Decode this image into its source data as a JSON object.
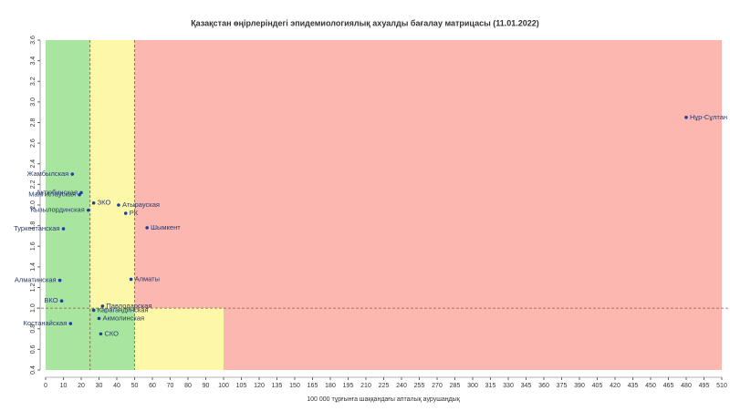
{
  "chart_data": {
    "type": "scatter",
    "title": "Қазақстан өңірлеріндегі эпидемиологиялық ахуалды бағалау матрицасы  (11.01.2022)",
    "x_label": "100 000 тұрғынға шаққандағы апталық аурушаңдық",
    "labels": [
      "Нұр-Сұлтан",
      "Жамбылская",
      "Актюбинская",
      "Мангистауская",
      "ЗКО",
      "Атырауская",
      "РК",
      "Шымкент",
      "Кызылординская",
      "Туркестанская",
      "Алматинская",
      "Алматы",
      "ВКО",
      "Павлодарская",
      "Карагандинская",
      "Акмолинская",
      "Костанайская",
      "СКО"
    ],
    "x": [
      480,
      15,
      20,
      19,
      27,
      41,
      45,
      57,
      24,
      10,
      8,
      48,
      9,
      32,
      27,
      30,
      14,
      31
    ],
    "values": [
      2.85,
      2.3,
      2.12,
      2.1,
      2.02,
      2.0,
      1.92,
      1.78,
      1.95,
      1.77,
      1.27,
      1.28,
      1.07,
      1.02,
      0.98,
      0.9,
      0.85,
      0.75
    ],
    "color": "#1f3fa0",
    "xlim": [
      0,
      510
    ],
    "ylim": [
      0.4,
      3.6
    ],
    "xticks": [
      0,
      10,
      20,
      30,
      40,
      50,
      60,
      70,
      80,
      90,
      100,
      105,
      120,
      135,
      150,
      165,
      180,
      195,
      210,
      225,
      240,
      255,
      270,
      285,
      300,
      315,
      330,
      345,
      360,
      375,
      390,
      405,
      420,
      435,
      450,
      465,
      480,
      495,
      510
    ],
    "yticks": [
      0.4,
      0.6,
      0.8,
      {
        "value": 1,
        "label": "1.0"
      },
      1.2,
      1.4,
      1.6,
      1.8,
      {
        "value": 2,
        "label": "2.0"
      },
      2.2,
      2.4,
      2.6,
      2.8,
      {
        "value": 3,
        "label": "3.0"
      },
      3.2,
      3.4,
      3.6
    ],
    "zones": [
      {
        "x": [
          0,
          25
        ],
        "y": [
          1,
          3.6
        ],
        "color": "#a8e6a0"
      },
      {
        "x": [
          25,
          50
        ],
        "y": [
          1,
          3.6
        ],
        "color": "#fdf8a8"
      },
      {
        "x": [
          50,
          510
        ],
        "y": [
          1,
          3.6
        ],
        "color": "#fbb7b0"
      },
      {
        "x": [
          0,
          50
        ],
        "y": [
          0.4,
          1
        ],
        "color": "#a8e6a0"
      },
      {
        "x": [
          50,
          100
        ],
        "y": [
          0.4,
          1
        ],
        "color": "#fdf8a8"
      },
      {
        "x": [
          100,
          510
        ],
        "y": [
          0.4,
          1
        ],
        "color": "#fbb7b0"
      }
    ],
    "thresholds_x": [
      25,
      50
    ],
    "thresholds_y": [
      1
    ]
  }
}
